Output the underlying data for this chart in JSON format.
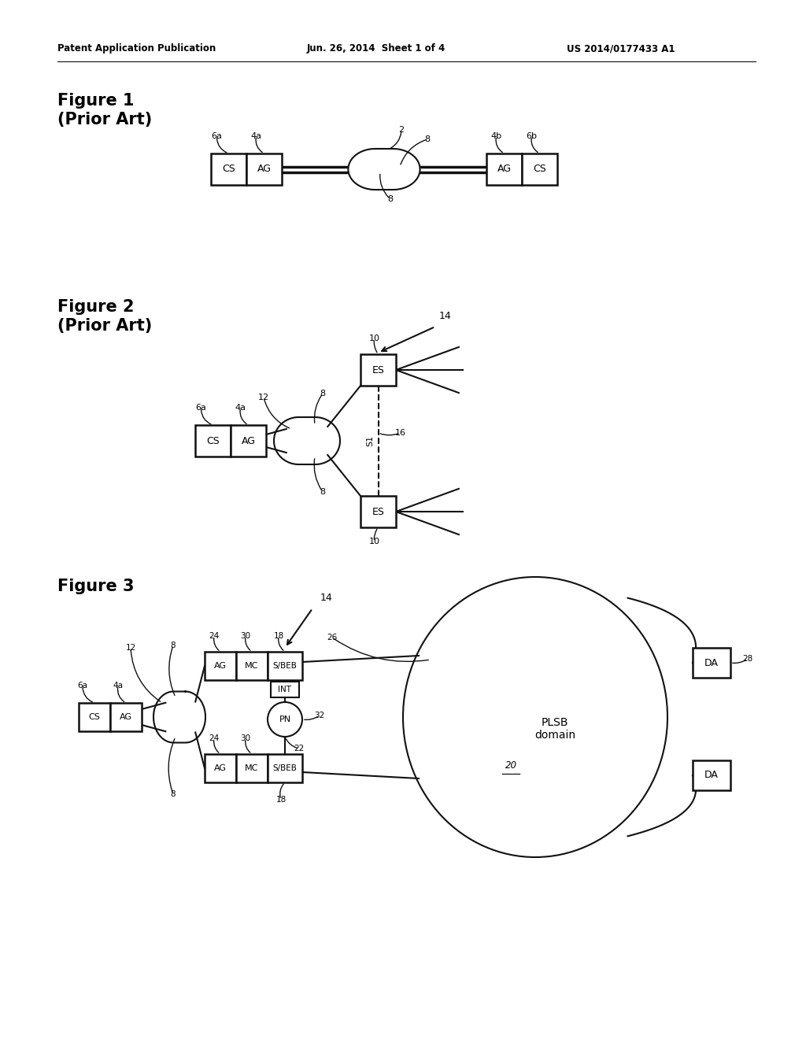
{
  "bg_color": "#ffffff",
  "header_left": "Patent Application Publication",
  "header_mid": "Jun. 26, 2014  Sheet 1 of 4",
  "header_right": "US 2014/0177433 A1"
}
